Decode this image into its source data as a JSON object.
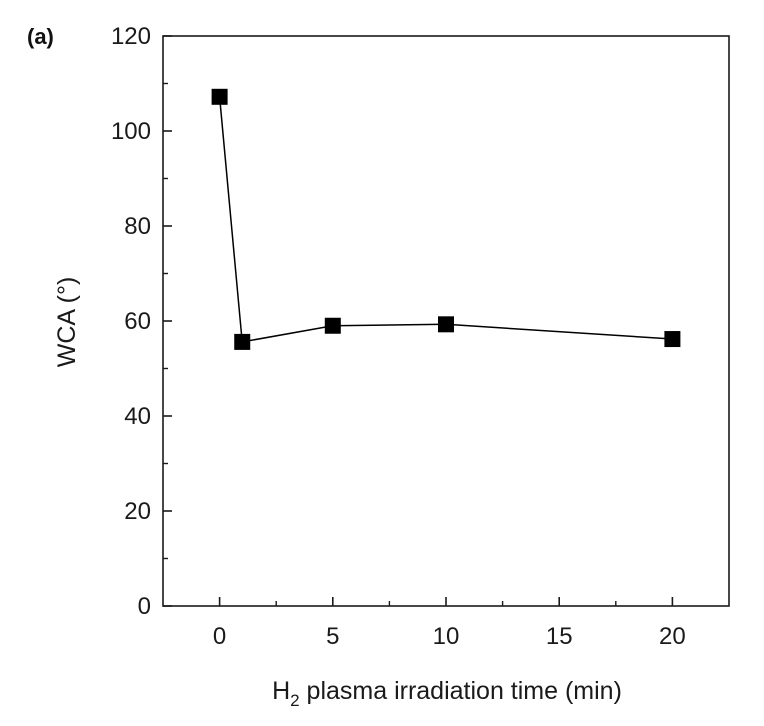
{
  "chart_data": {
    "type": "line",
    "panel_label": "(a)",
    "title": "",
    "xlabel": {
      "prefix": "H",
      "subscript": "2",
      "suffix": " plasma irradiation time (min)"
    },
    "ylabel": "WCA (°)",
    "xlim": [
      -2.5,
      22.5
    ],
    "ylim": [
      0,
      120
    ],
    "xticks": [
      0,
      5,
      10,
      15,
      20
    ],
    "yticks": [
      0,
      20,
      40,
      60,
      80,
      100,
      120
    ],
    "x_minor_ticks": [
      2.5,
      7.5,
      12.5,
      17.5
    ],
    "y_minor_ticks": [
      10,
      30,
      50,
      70,
      90,
      110
    ],
    "grid": false,
    "legend": false,
    "series": [
      {
        "marker": "square",
        "color": "#000000",
        "x": [
          0,
          1,
          5,
          10,
          20
        ],
        "y": [
          107.2,
          55.6,
          59.0,
          59.3,
          56.2
        ]
      }
    ]
  }
}
